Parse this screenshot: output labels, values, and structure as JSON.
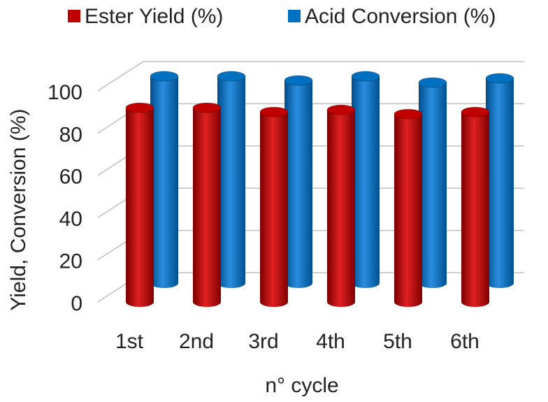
{
  "chart_data": {
    "type": "bar3d",
    "x_label": "n° cycle",
    "y_label": "Yield, Conversion (%)",
    "categories": [
      "1st",
      "2nd",
      "3rd",
      "4th",
      "5th",
      "6th"
    ],
    "series": [
      {
        "name": "Ester Yield (%)",
        "color": "#c00000",
        "values": [
          92,
          92,
          90,
          91,
          89,
          90
        ]
      },
      {
        "name": "Acid Conversion (%)",
        "color": "#0070c0",
        "values": [
          98,
          98,
          96,
          98,
          95,
          97
        ]
      }
    ],
    "ylim": [
      0,
      100
    ],
    "yticks": [
      0,
      20,
      40,
      60,
      80,
      100
    ],
    "grid": true
  }
}
